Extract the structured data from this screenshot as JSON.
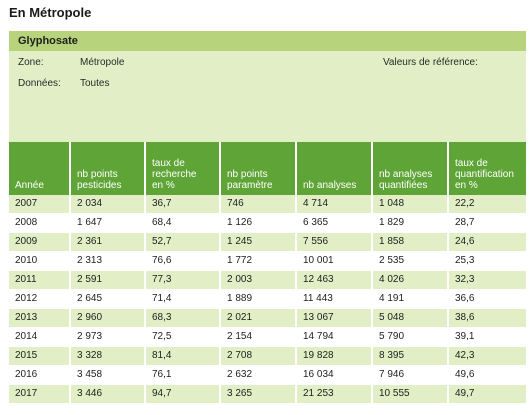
{
  "page_title": "En Métropole",
  "card_title": "Glyphosate",
  "info": {
    "zone_label": "Zone:",
    "zone_value": "Métropole",
    "data_label": "Données:",
    "data_value": "Toutes",
    "reference_label": "Valeurs de référence:"
  },
  "table": {
    "headers": [
      [
        "Année"
      ],
      [
        "nb points",
        "pesticides"
      ],
      [
        "taux de",
        "recherche",
        "en %"
      ],
      [
        "nb points",
        "paramètre"
      ],
      [
        "nb analyses"
      ],
      [
        "nb analyses",
        "quantifiées"
      ],
      [
        "taux de",
        "quantification",
        "en %"
      ]
    ],
    "rows": [
      [
        "2007",
        "2 034",
        "36,7",
        "746",
        "4 714",
        "1 048",
        "22,2"
      ],
      [
        "2008",
        "1 647",
        "68,4",
        "1 126",
        "6 365",
        "1 829",
        "28,7"
      ],
      [
        "2009",
        "2 361",
        "52,7",
        "1 245",
        "7 556",
        "1 858",
        "24,6"
      ],
      [
        "2010",
        "2 313",
        "76,6",
        "1 772",
        "10 001",
        "2 535",
        "25,3"
      ],
      [
        "2011",
        "2 591",
        "77,3",
        "2 003",
        "12 463",
        "4 026",
        "32,3"
      ],
      [
        "2012",
        "2 645",
        "71,4",
        "1 889",
        "11 443",
        "4 191",
        "36,6"
      ],
      [
        "2013",
        "2 960",
        "68,3",
        "2 021",
        "13 067",
        "5 048",
        "38,6"
      ],
      [
        "2014",
        "2 973",
        "72,5",
        "2 154",
        "14 794",
        "5 790",
        "39,1"
      ],
      [
        "2015",
        "3 328",
        "81,4",
        "2 708",
        "19 828",
        "8 395",
        "42,3"
      ],
      [
        "2016",
        "3 458",
        "76,1",
        "2 632",
        "16 034",
        "7 946",
        "49,6"
      ],
      [
        "2017",
        "3 446",
        "94,7",
        "3 265",
        "21 253",
        "10 555",
        "49,7"
      ]
    ]
  },
  "colors": {
    "header_band": "#b7d47c",
    "info_band": "#e2efc6",
    "table_header": "#5fa436"
  }
}
